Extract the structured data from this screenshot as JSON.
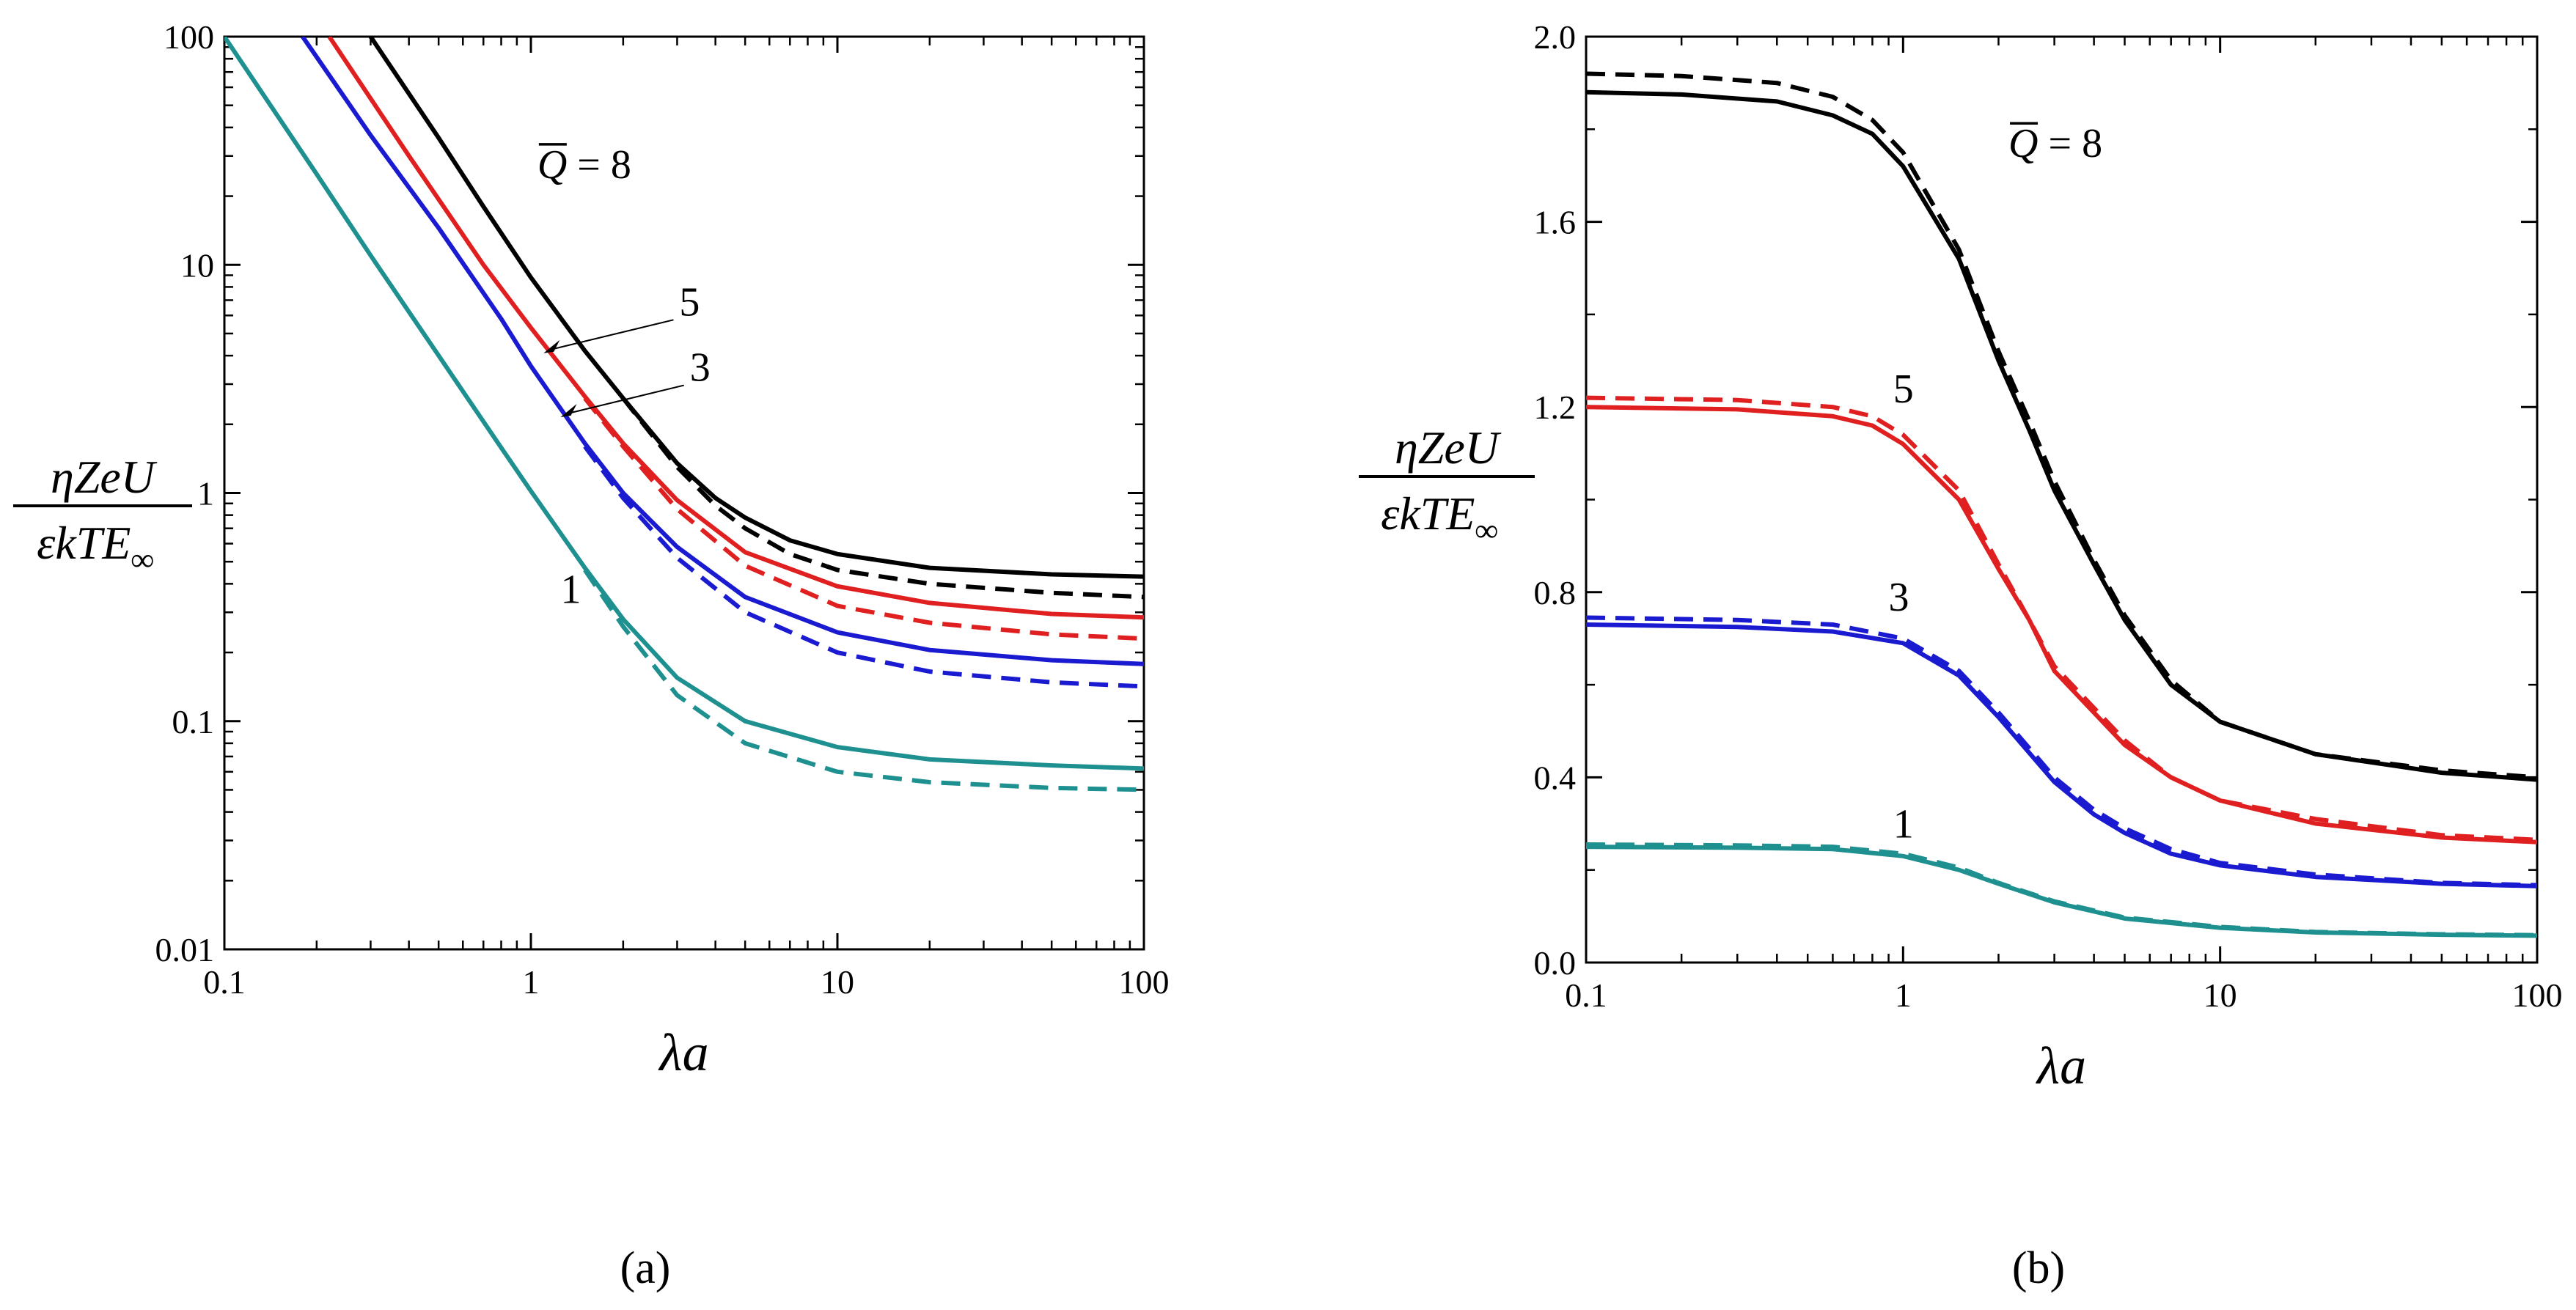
{
  "panel_labels": [
    "(a)",
    "(b)"
  ],
  "y_label": {
    "numerator": "ηZeU",
    "denominator": "εkTE",
    "subscript": "∞"
  },
  "chart_data": [
    {
      "type": "line",
      "panel": "(a)",
      "xlabel": "λa",
      "ylabel": "ηZeU / εkTE∞",
      "xscale": "log",
      "yscale": "log",
      "xlim": [
        0.1,
        100
      ],
      "ylim": [
        0.01,
        100
      ],
      "xticks": [
        "0.1",
        "1",
        "10",
        "100"
      ],
      "yticks": [
        "0.01",
        "0.1",
        "1",
        "10",
        "100"
      ],
      "grid": false,
      "annotations": [
        {
          "text_prefix": "Q",
          "text_suffix": " = 8",
          "overline": true,
          "x": 1.05,
          "y": 24,
          "series": "Q=8"
        },
        {
          "text": "5",
          "x": 3.05,
          "y": 6.0,
          "series": "Q=5",
          "arrow_to": [
            1.1,
            4.1
          ]
        },
        {
          "text": "3",
          "x": 3.3,
          "y": 3.1,
          "series": "Q=3",
          "arrow_to": [
            1.25,
            2.15
          ]
        },
        {
          "text": "1",
          "x": 1.25,
          "y": 0.33,
          "series": "Q=1"
        }
      ],
      "series": [
        {
          "key": "Q=8",
          "style": "solid",
          "color": "#000000",
          "points": [
            [
              0.3,
              100
            ],
            [
              0.5,
              36
            ],
            [
              0.7,
              18
            ],
            [
              1,
              8.8
            ],
            [
              1.5,
              4.2
            ],
            [
              2,
              2.6
            ],
            [
              3,
              1.35
            ],
            [
              4,
              0.95
            ],
            [
              5,
              0.78
            ],
            [
              7,
              0.62
            ],
            [
              10,
              0.54
            ],
            [
              20,
              0.47
            ],
            [
              50,
              0.44
            ],
            [
              100,
              0.43
            ]
          ]
        },
        {
          "key": "Q=8",
          "style": "dashed",
          "color": "#000000",
          "points": [
            [
              2,
              2.6
            ],
            [
              3,
              1.3
            ],
            [
              4,
              0.88
            ],
            [
              5,
              0.7
            ],
            [
              7,
              0.54
            ],
            [
              10,
              0.46
            ],
            [
              20,
              0.4
            ],
            [
              50,
              0.365
            ],
            [
              100,
              0.35
            ]
          ]
        },
        {
          "key": "Q=5",
          "style": "solid",
          "color": "#e02020",
          "points": [
            [
              0.22,
              100
            ],
            [
              0.4,
              30
            ],
            [
              0.7,
              10
            ],
            [
              1,
              5.3
            ],
            [
              1.5,
              2.65
            ],
            [
              2,
              1.65
            ],
            [
              3,
              0.93
            ],
            [
              5,
              0.55
            ],
            [
              10,
              0.39
            ],
            [
              20,
              0.33
            ],
            [
              50,
              0.295
            ],
            [
              100,
              0.285
            ]
          ]
        },
        {
          "key": "Q=5",
          "style": "dashed",
          "color": "#e02020",
          "points": [
            [
              1.5,
              2.6
            ],
            [
              2,
              1.6
            ],
            [
              3,
              0.85
            ],
            [
              5,
              0.48
            ],
            [
              10,
              0.32
            ],
            [
              20,
              0.27
            ],
            [
              50,
              0.24
            ],
            [
              100,
              0.23
            ]
          ]
        },
        {
          "key": "Q=3",
          "style": "solid",
          "color": "#1a1ad0",
          "points": [
            [
              0.18,
              100
            ],
            [
              0.3,
              37
            ],
            [
              0.5,
              14.5
            ],
            [
              0.8,
              5.8
            ],
            [
              1,
              3.6
            ],
            [
              1.5,
              1.65
            ],
            [
              2,
              1.0
            ],
            [
              3,
              0.58
            ],
            [
              5,
              0.35
            ],
            [
              10,
              0.245
            ],
            [
              20,
              0.205
            ],
            [
              50,
              0.185
            ],
            [
              100,
              0.178
            ]
          ]
        },
        {
          "key": "Q=3",
          "style": "dashed",
          "color": "#1a1ad0",
          "points": [
            [
              1.5,
              1.6
            ],
            [
              2,
              0.95
            ],
            [
              3,
              0.52
            ],
            [
              5,
              0.3
            ],
            [
              10,
              0.2
            ],
            [
              20,
              0.165
            ],
            [
              50,
              0.148
            ],
            [
              100,
              0.142
            ]
          ]
        },
        {
          "key": "Q=1",
          "style": "solid",
          "color": "#1f9090",
          "points": [
            [
              0.1,
              100
            ],
            [
              0.2,
              25
            ],
            [
              0.3,
              11
            ],
            [
              0.5,
              4
            ],
            [
              0.8,
              1.58
            ],
            [
              1,
              1.02
            ],
            [
              1.5,
              0.47
            ],
            [
              2,
              0.28
            ],
            [
              3,
              0.155
            ],
            [
              5,
              0.1
            ],
            [
              10,
              0.077
            ],
            [
              20,
              0.068
            ],
            [
              50,
              0.064
            ],
            [
              100,
              0.062
            ]
          ]
        },
        {
          "key": "Q=1",
          "style": "dashed",
          "color": "#1f9090",
          "points": [
            [
              1.5,
              0.46
            ],
            [
              2,
              0.26
            ],
            [
              3,
              0.13
            ],
            [
              5,
              0.08
            ],
            [
              10,
              0.06
            ],
            [
              20,
              0.054
            ],
            [
              50,
              0.051
            ],
            [
              100,
              0.05
            ]
          ]
        }
      ]
    },
    {
      "type": "line",
      "panel": "(b)",
      "xlabel": "λa",
      "ylabel": "ηZeU / εkTE∞",
      "xscale": "log",
      "yscale": "linear",
      "xlim": [
        0.1,
        100
      ],
      "ylim": [
        0,
        2.0
      ],
      "xticks": [
        "0.1",
        "1",
        "10",
        "100"
      ],
      "yticks": [
        "0.0",
        "0.4",
        "0.8",
        "1.2",
        "1.6",
        "2.0"
      ],
      "grid": false,
      "annotations": [
        {
          "text_prefix": "Q",
          "text_suffix": " = 8",
          "overline": true,
          "x": 2.15,
          "y": 1.74,
          "series": "Q=8"
        },
        {
          "text": "5",
          "x": 0.93,
          "y": 1.21,
          "series": "Q=5"
        },
        {
          "text": "3",
          "x": 0.9,
          "y": 0.76,
          "series": "Q=3"
        },
        {
          "text": "1",
          "x": 0.93,
          "y": 0.27,
          "series": "Q=1"
        }
      ],
      "series": [
        {
          "key": "Q=8",
          "style": "solid",
          "color": "#000000",
          "points": [
            [
              0.1,
              1.88
            ],
            [
              0.2,
              1.875
            ],
            [
              0.4,
              1.86
            ],
            [
              0.6,
              1.83
            ],
            [
              0.8,
              1.79
            ],
            [
              1,
              1.72
            ],
            [
              1.5,
              1.52
            ],
            [
              2,
              1.3
            ],
            [
              2.5,
              1.15
            ],
            [
              3,
              1.02
            ],
            [
              4,
              0.86
            ],
            [
              5,
              0.74
            ],
            [
              7,
              0.6
            ],
            [
              10,
              0.52
            ],
            [
              20,
              0.45
            ],
            [
              50,
              0.41
            ],
            [
              100,
              0.395
            ]
          ]
        },
        {
          "key": "Q=8",
          "style": "dashed",
          "color": "#000000",
          "points": [
            [
              0.1,
              1.92
            ],
            [
              0.2,
              1.915
            ],
            [
              0.4,
              1.9
            ],
            [
              0.6,
              1.87
            ],
            [
              0.8,
              1.82
            ],
            [
              1,
              1.75
            ],
            [
              1.5,
              1.54
            ],
            [
              2,
              1.32
            ],
            [
              2.5,
              1.17
            ],
            [
              3,
              1.04
            ],
            [
              4,
              0.87
            ],
            [
              5,
              0.75
            ],
            [
              7,
              0.61
            ],
            [
              10,
              0.52
            ],
            [
              20,
              0.45
            ],
            [
              50,
              0.415
            ],
            [
              100,
              0.4
            ]
          ]
        },
        {
          "key": "Q=5",
          "style": "solid",
          "color": "#e02020",
          "points": [
            [
              0.1,
              1.2
            ],
            [
              0.3,
              1.195
            ],
            [
              0.6,
              1.18
            ],
            [
              0.8,
              1.16
            ],
            [
              1,
              1.12
            ],
            [
              1.5,
              1.0
            ],
            [
              2,
              0.85
            ],
            [
              2.5,
              0.74
            ],
            [
              3,
              0.63
            ],
            [
              5,
              0.47
            ],
            [
              7,
              0.4
            ],
            [
              10,
              0.35
            ],
            [
              20,
              0.3
            ],
            [
              50,
              0.27
            ],
            [
              100,
              0.26
            ]
          ]
        },
        {
          "key": "Q=5",
          "style": "dashed",
          "color": "#e02020",
          "points": [
            [
              0.1,
              1.22
            ],
            [
              0.3,
              1.215
            ],
            [
              0.6,
              1.2
            ],
            [
              0.8,
              1.18
            ],
            [
              1,
              1.14
            ],
            [
              1.5,
              1.02
            ],
            [
              2,
              0.86
            ],
            [
              2.5,
              0.74
            ],
            [
              3,
              0.64
            ],
            [
              5,
              0.48
            ],
            [
              7,
              0.4
            ],
            [
              10,
              0.35
            ],
            [
              20,
              0.31
            ],
            [
              50,
              0.275
            ],
            [
              100,
              0.265
            ]
          ]
        },
        {
          "key": "Q=3",
          "style": "solid",
          "color": "#1a1ad0",
          "points": [
            [
              0.1,
              0.73
            ],
            [
              0.3,
              0.725
            ],
            [
              0.6,
              0.715
            ],
            [
              1,
              0.69
            ],
            [
              1.5,
              0.62
            ],
            [
              2,
              0.53
            ],
            [
              3,
              0.39
            ],
            [
              4,
              0.32
            ],
            [
              5,
              0.28
            ],
            [
              7,
              0.235
            ],
            [
              10,
              0.21
            ],
            [
              20,
              0.185
            ],
            [
              50,
              0.17
            ],
            [
              100,
              0.165
            ]
          ]
        },
        {
          "key": "Q=3",
          "style": "dashed",
          "color": "#1a1ad0",
          "points": [
            [
              0.1,
              0.745
            ],
            [
              0.3,
              0.74
            ],
            [
              0.6,
              0.73
            ],
            [
              1,
              0.7
            ],
            [
              1.5,
              0.63
            ],
            [
              2,
              0.54
            ],
            [
              3,
              0.4
            ],
            [
              4,
              0.33
            ],
            [
              5,
              0.29
            ],
            [
              7,
              0.245
            ],
            [
              10,
              0.215
            ],
            [
              20,
              0.19
            ],
            [
              50,
              0.172
            ],
            [
              100,
              0.167
            ]
          ]
        },
        {
          "key": "Q=1",
          "style": "solid",
          "color": "#1f9090",
          "points": [
            [
              0.1,
              0.25
            ],
            [
              0.3,
              0.248
            ],
            [
              0.6,
              0.245
            ],
            [
              1,
              0.23
            ],
            [
              1.5,
              0.2
            ],
            [
              2,
              0.17
            ],
            [
              3,
              0.13
            ],
            [
              5,
              0.095
            ],
            [
              10,
              0.075
            ],
            [
              20,
              0.065
            ],
            [
              50,
              0.06
            ],
            [
              100,
              0.058
            ]
          ]
        },
        {
          "key": "Q=1",
          "style": "dashed",
          "color": "#1f9090",
          "points": [
            [
              0.1,
              0.255
            ],
            [
              0.3,
              0.253
            ],
            [
              0.6,
              0.25
            ],
            [
              1,
              0.235
            ],
            [
              1.5,
              0.205
            ],
            [
              2,
              0.172
            ],
            [
              3,
              0.132
            ],
            [
              5,
              0.097
            ],
            [
              10,
              0.077
            ],
            [
              20,
              0.066
            ],
            [
              50,
              0.061
            ],
            [
              100,
              0.059
            ]
          ]
        }
      ]
    }
  ]
}
